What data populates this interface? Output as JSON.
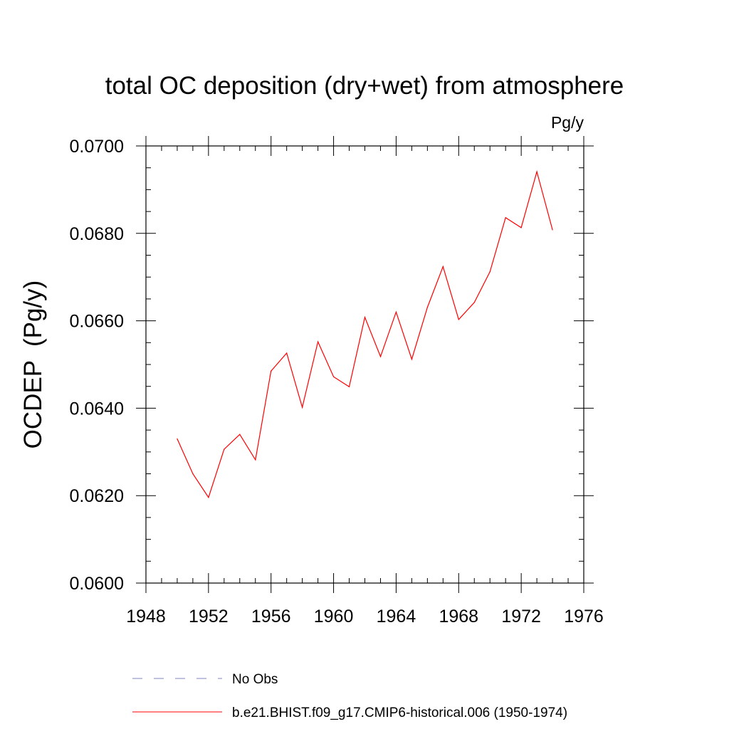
{
  "chart_data": {
    "type": "line",
    "title": "total OC deposition (dry+wet) from atmosphere",
    "units": "Pg/y",
    "ylabel": "OCDEP  (Pg/y)",
    "xlabel": "",
    "xlim": [
      1948,
      1976
    ],
    "ylim": [
      0.06,
      0.07
    ],
    "xticks": [
      1948,
      1952,
      1956,
      1960,
      1964,
      1968,
      1972,
      1976
    ],
    "xtick_labels": [
      "1948",
      "1952",
      "1956",
      "1960",
      "1964",
      "1968",
      "1972",
      "1976"
    ],
    "yticks": [
      0.06,
      0.062,
      0.064,
      0.066,
      0.068,
      0.07
    ],
    "ytick_labels": [
      "0.0600",
      "0.0620",
      "0.0640",
      "0.0660",
      "0.0680",
      "0.0700"
    ],
    "x_minor_step": 1,
    "y_minor_step": 0.0005,
    "grid": false,
    "legend_position": "bottom",
    "series": [
      {
        "name": "b.e21.BHIST.f09_g17.CMIP6-historical.006 (1950-1974)",
        "color": "#ff0000",
        "dash": "solid",
        "x": [
          1950,
          1951,
          1952,
          1953,
          1954,
          1955,
          1956,
          1957,
          1958,
          1959,
          1960,
          1961,
          1962,
          1963,
          1964,
          1965,
          1966,
          1967,
          1968,
          1969,
          1970,
          1971,
          1972,
          1973,
          1974
        ],
        "y": [
          0.0633,
          0.0625,
          0.06196,
          0.06306,
          0.0634,
          0.06282,
          0.06485,
          0.06526,
          0.06402,
          0.06552,
          0.06472,
          0.06449,
          0.06608,
          0.06518,
          0.0662,
          0.06512,
          0.06631,
          0.06724,
          0.06603,
          0.06642,
          0.06712,
          0.06836,
          0.06813,
          0.06941,
          0.06808
        ]
      }
    ],
    "legend": [
      {
        "label": "No Obs",
        "color": "#8080c0",
        "dash": "dashed"
      },
      {
        "label": "b.e21.BHIST.f09_g17.CMIP6-historical.006 (1950-1974)",
        "color": "#ff0000",
        "dash": "solid"
      }
    ]
  }
}
